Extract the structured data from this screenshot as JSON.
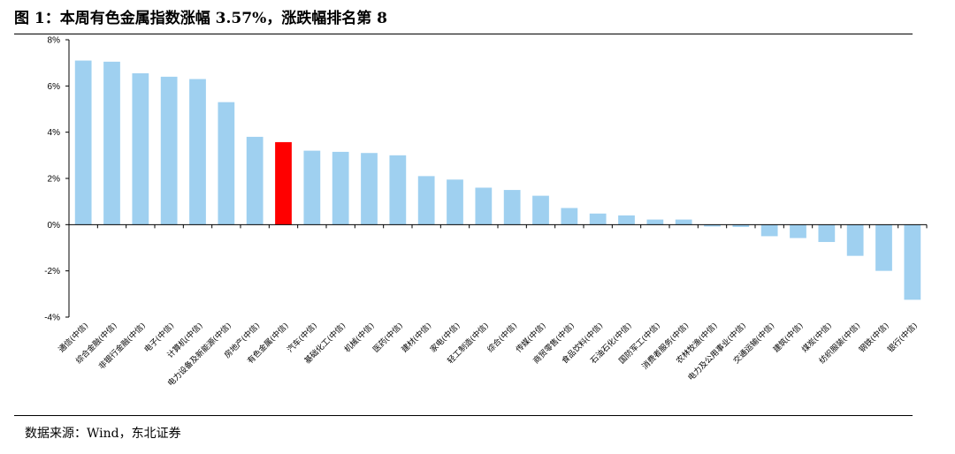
{
  "header": {
    "title": "图 1：本周有色金属指数涨幅 3.57%，涨跌幅排名第 8"
  },
  "footer": {
    "source": "数据来源：Wind，东北证券"
  },
  "chart_data": {
    "type": "bar",
    "categories": [
      "通信(中信)",
      "综合金融(中信)",
      "非银行金融(中信)",
      "电子(中信)",
      "计算机(中信)",
      "电力设备及新能源(中信)",
      "房地产(中信)",
      "有色金属(中信)",
      "汽车(中信)",
      "基础化工(中信)",
      "机械(中信)",
      "医药(中信)",
      "建材(中信)",
      "家电(中信)",
      "轻工制造(中信)",
      "综合(中信)",
      "传媒(中信)",
      "商贸零售(中信)",
      "食品饮料(中信)",
      "石油石化(中信)",
      "国防军工(中信)",
      "消费者服务(中信)",
      "农林牧渔(中信)",
      "电力及公用事业(中信)",
      "交通运输(中信)",
      "建筑(中信)",
      "煤炭(中信)",
      "纺织服装(中信)",
      "钢铁(中信)",
      "银行(中信)"
    ],
    "values": [
      7.1,
      7.05,
      6.55,
      6.4,
      6.3,
      5.3,
      3.8,
      3.57,
      3.2,
      3.15,
      3.1,
      3.0,
      2.1,
      1.95,
      1.6,
      1.5,
      1.25,
      0.72,
      0.48,
      0.4,
      0.22,
      0.22,
      -0.08,
      -0.1,
      -0.5,
      -0.58,
      -0.75,
      -1.35,
      -2.0,
      -3.25
    ],
    "highlight_index": 7,
    "colors": {
      "bar": "#9fd0f0",
      "highlight": "#ff0000"
    },
    "ylim": [
      -4,
      8
    ],
    "yticks": [
      8,
      6,
      4,
      2,
      0,
      -2,
      -4
    ],
    "ytick_labels": [
      "8%",
      "6%",
      "4%",
      "2%",
      "0%",
      "-2%",
      "-4%"
    ],
    "grid": false,
    "legend": "none"
  }
}
